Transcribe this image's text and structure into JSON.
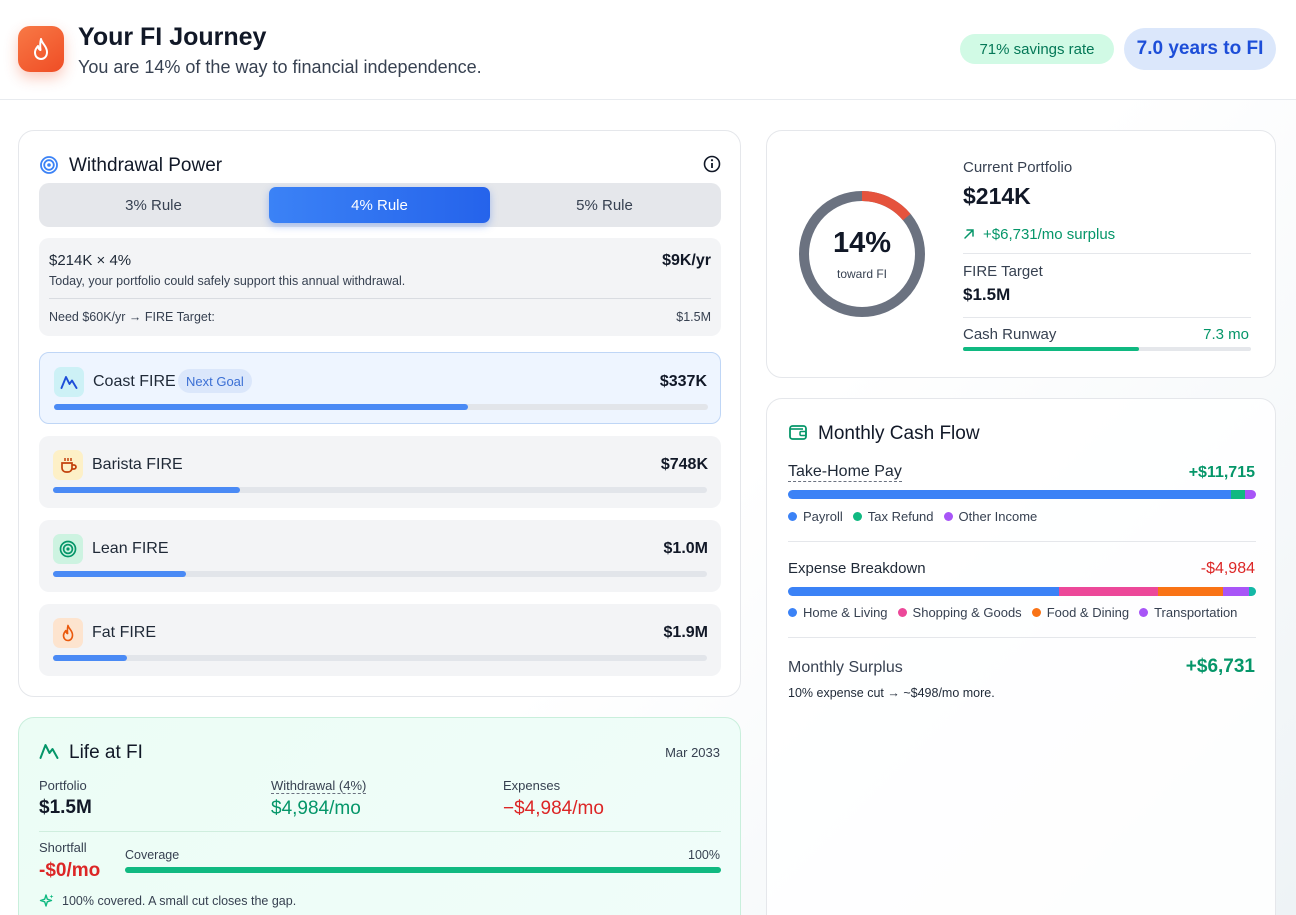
{
  "header": {
    "title": "Your FI Journey",
    "subtitle": "You are 14% of the way to financial independence.",
    "savings_pill": "71% savings rate",
    "years_pill": "7.0 years to FI",
    "icon": "flame-icon"
  },
  "withdrawal": {
    "title": "Withdrawal Power",
    "rules": [
      "3% Rule",
      "4% Rule",
      "5% Rule"
    ],
    "active_rule_index": 1,
    "formula": "$214K × 4%",
    "annual_value": "$9K/yr",
    "description": "Today, your portfolio could safely support this annual withdrawal.",
    "need_text": "Need $60K/yr → FIRE Target:",
    "need_value": "$1.5M",
    "goals": [
      {
        "name": "Coast FIRE",
        "value": "$337K",
        "badge": "Next Goal",
        "progress": 0.633,
        "icon": "mountain-icon",
        "highlight": true
      },
      {
        "name": "Barista FIRE",
        "value": "$748K",
        "progress": 0.286,
        "icon": "coffee-icon"
      },
      {
        "name": "Lean FIRE",
        "value": "$1.0M",
        "progress": 0.203,
        "icon": "target-icon"
      },
      {
        "name": "Fat FIRE",
        "value": "$1.9M",
        "progress": 0.113,
        "icon": "flame-icon"
      }
    ]
  },
  "life": {
    "title": "Life at FI",
    "date": "Mar 2033",
    "portfolio_label": "Portfolio",
    "portfolio_value": "$1.5M",
    "withdrawal_label": "Withdrawal (4%)",
    "withdrawal_value": "$4,984/mo",
    "expenses_label": "Expenses",
    "expenses_value": "−$4,984/mo",
    "shortfall_label": "Shortfall",
    "shortfall_value": "-$0/mo",
    "coverage_label": "Coverage",
    "coverage_value": "100%",
    "coverage_fraction": 1.0,
    "note": "100% covered. A small cut closes the gap."
  },
  "portfolio": {
    "ring_percent": "14%",
    "ring_fraction": 0.14,
    "ring_caption": "toward FI",
    "current_label": "Current Portfolio",
    "current_value": "$214K",
    "surplus": "+$6,731/mo surplus",
    "target_label": "FIRE Target",
    "target_value": "$1.5M",
    "runway_label": "Cash Runway",
    "runway_value": "7.3 mo",
    "runway_fraction": 0.61
  },
  "cashflow": {
    "title": "Monthly Cash Flow",
    "income_label": "Take-Home Pay",
    "income_value": "+$11,715",
    "income_legend": [
      "Payroll",
      "Tax Refund",
      "Other Income"
    ],
    "expense_label": "Expense Breakdown",
    "expense_value": "-$4,984",
    "expense_legend": [
      "Home & Living",
      "Shopping & Goods",
      "Food & Dining",
      "Transportation"
    ],
    "surplus_label": "Monthly Surplus",
    "surplus_value": "+$6,731",
    "surplus_note": "10% expense cut → ~$498/mo more."
  },
  "colors": {
    "blue": "#3b82f6",
    "green": "#10b981",
    "purple": "#a855f7",
    "pink": "#ec4899",
    "orange": "#f97316",
    "red": "#dc2626",
    "ring_red": "#e5533d",
    "ring_grey": "#6b7280"
  }
}
